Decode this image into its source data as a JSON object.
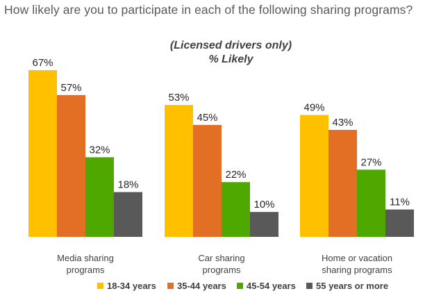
{
  "chart_data": {
    "type": "bar",
    "title": "How likely are you to participate in each of the following sharing programs?",
    "subtitle": [
      "(Licensed drivers only)",
      "% Likely"
    ],
    "categories": [
      [
        "Media sharing",
        "programs"
      ],
      [
        "Car sharing",
        "programs"
      ],
      [
        "Home or vacation",
        "sharing programs"
      ]
    ],
    "series": [
      {
        "name": "18-34 years",
        "color": "#FFC000",
        "values": [
          67,
          53,
          49
        ]
      },
      {
        "name": "35-44 years",
        "color": "#E36F24",
        "values": [
          57,
          45,
          43
        ]
      },
      {
        "name": "45-54 years",
        "color": "#4EA800",
        "values": [
          32,
          22,
          27
        ]
      },
      {
        "name": "55 years or more",
        "color": "#595959",
        "values": [
          18,
          10,
          11
        ]
      }
    ],
    "value_suffix": "%",
    "ylim": [
      0,
      67
    ],
    "xlabel": "",
    "ylabel": "",
    "grid": false,
    "legend": "bottom"
  }
}
